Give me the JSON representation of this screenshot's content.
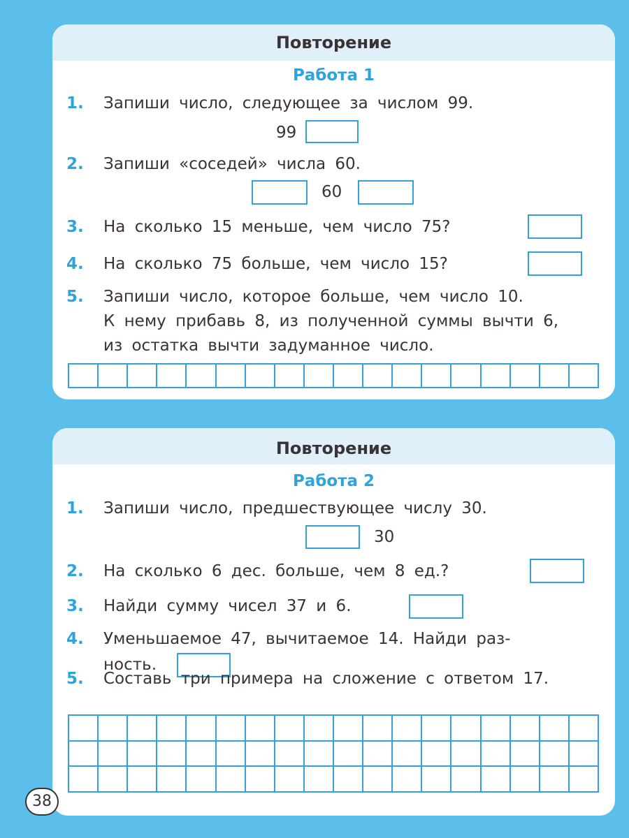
{
  "colors": {
    "background": "#5cbfe9",
    "accent": "#2fa3db",
    "header_band": "#dff0f8",
    "text": "#3a3236"
  },
  "work1": {
    "section_title": "Повторение",
    "work_title": "Работа 1",
    "tasks": [
      {
        "num": "1.",
        "lines": [
          "Запиши число, следующее за числом 99."
        ],
        "label_a": "99"
      },
      {
        "num": "2.",
        "lines": [
          "Запиши «соседей» числа 60."
        ],
        "label_a": "60"
      },
      {
        "num": "3.",
        "lines": [
          "На сколько 15 меньше, чем число 75?"
        ]
      },
      {
        "num": "4.",
        "lines": [
          "На сколько 75 больше, чем число 15?"
        ]
      },
      {
        "num": "5.",
        "lines": [
          "Запиши число, которое больше, чем число 10.",
          "К нему прибавь 8, из полученной суммы вычти 6,",
          "из остатка вычти задуманное число."
        ]
      }
    ]
  },
  "work2": {
    "section_title": "Повторение",
    "work_title": "Работа 2",
    "tasks": [
      {
        "num": "1.",
        "lines": [
          "Запиши число, предшествующее числу 30."
        ],
        "label_a": "30"
      },
      {
        "num": "2.",
        "lines": [
          "На сколько 6 дес. больше, чем 8 ед.?"
        ]
      },
      {
        "num": "3.",
        "lines": [
          "Найди сумму чисел 37 и 6."
        ]
      },
      {
        "num": "4.",
        "lines": [
          "Уменьшаемое 47, вычитаемое 14. Найди раз-",
          "ность."
        ]
      },
      {
        "num": "5.",
        "lines": [
          "Составь три примера на сложение с ответом 17."
        ]
      }
    ]
  },
  "page_number": "38"
}
